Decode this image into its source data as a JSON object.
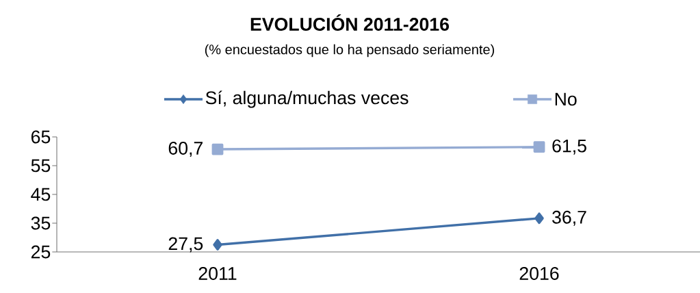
{
  "chart_data": {
    "type": "line",
    "title": "EVOLUCIÓN 2011-2016",
    "subtitle": "(% encuestados que lo ha pensado seriamente)",
    "categories": [
      "2011",
      "2016"
    ],
    "series": [
      {
        "name": "Sí, alguna/muchas veces",
        "color": "#4170a8",
        "values": [
          27.5,
          36.7
        ],
        "value_labels": [
          "27,5",
          "36,7"
        ],
        "marker": "diamond"
      },
      {
        "name": "No",
        "color": "#95abd3",
        "values": [
          60.7,
          61.5
        ],
        "value_labels": [
          "60,7",
          "61,5"
        ],
        "marker": "square"
      }
    ],
    "ylim": [
      25,
      65
    ],
    "yticks": [
      25,
      35,
      45,
      55,
      65
    ],
    "legend": "top",
    "grid": false
  }
}
